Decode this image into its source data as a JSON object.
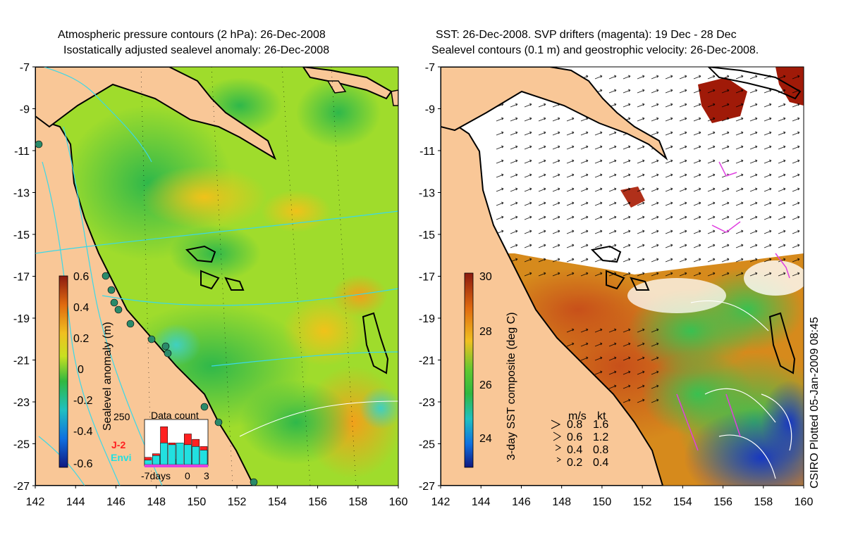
{
  "left_panel": {
    "title_line1": "Atmospheric pressure contours (2 hPa): 26-Dec-2008",
    "title_line2": "Isostatically adjusted sealevel anomaly: 26-Dec-2008",
    "colorbar_label": "Sealevel anomaly (m)",
    "colorbar_ticks": [
      "0.6",
      "0.4",
      "0.2",
      "0",
      "-0.2",
      "-0.4",
      "-0.6"
    ],
    "inset": {
      "title": "Data count",
      "ymax_label": "250",
      "x_labels": [
        "-7days",
        "0",
        "3"
      ],
      "legend": [
        "J-2",
        "Envi"
      ],
      "j2_counts": [
        40,
        60,
        210,
        120,
        30,
        170,
        140,
        100
      ],
      "envi_counts": [
        25,
        50,
        120,
        110,
        120,
        110,
        100,
        80
      ],
      "colors": {
        "J-2": "#ff2020",
        "Envi": "#22e0e0"
      }
    }
  },
  "right_panel": {
    "title_line1": "SST: 26-Dec-2008. SVP drifters (magenta): 19 Dec - 28 Dec",
    "title_line2": "Sealevel contours (0.1 m) and geostrophic velocity: 26-Dec-2008.",
    "colorbar_label": "3-day SST composite (deg C)",
    "colorbar_ticks": [
      "30",
      "28",
      "26",
      "24"
    ],
    "speed_legend": {
      "header_ms": "m/s",
      "header_kt": "kt",
      "rows": [
        {
          "ms": "0.8",
          "kt": "1.6"
        },
        {
          "ms": "0.6",
          "kt": "1.2"
        },
        {
          "ms": "0.4",
          "kt": "0.8"
        },
        {
          "ms": "0.2",
          "kt": "0.4"
        }
      ]
    }
  },
  "axes": {
    "lat_labels": [
      "-7",
      "-9",
      "-11",
      "-13",
      "-15",
      "-17",
      "-19",
      "-21",
      "-23",
      "-25",
      "-27"
    ],
    "lon_labels": [
      "142",
      "144",
      "146",
      "148",
      "150",
      "152",
      "154",
      "156",
      "158",
      "160"
    ]
  },
  "credit": "CSIRO Plotted 05-Jan-2009 08:45",
  "colors": {
    "land": "#f9c797",
    "ocean_anomaly": "#8fd832",
    "sst_cold": "#1e3fbf",
    "sst_warm": "#d05a10",
    "cloud_mask": "#ffffff",
    "drifters": "#e040e0"
  }
}
